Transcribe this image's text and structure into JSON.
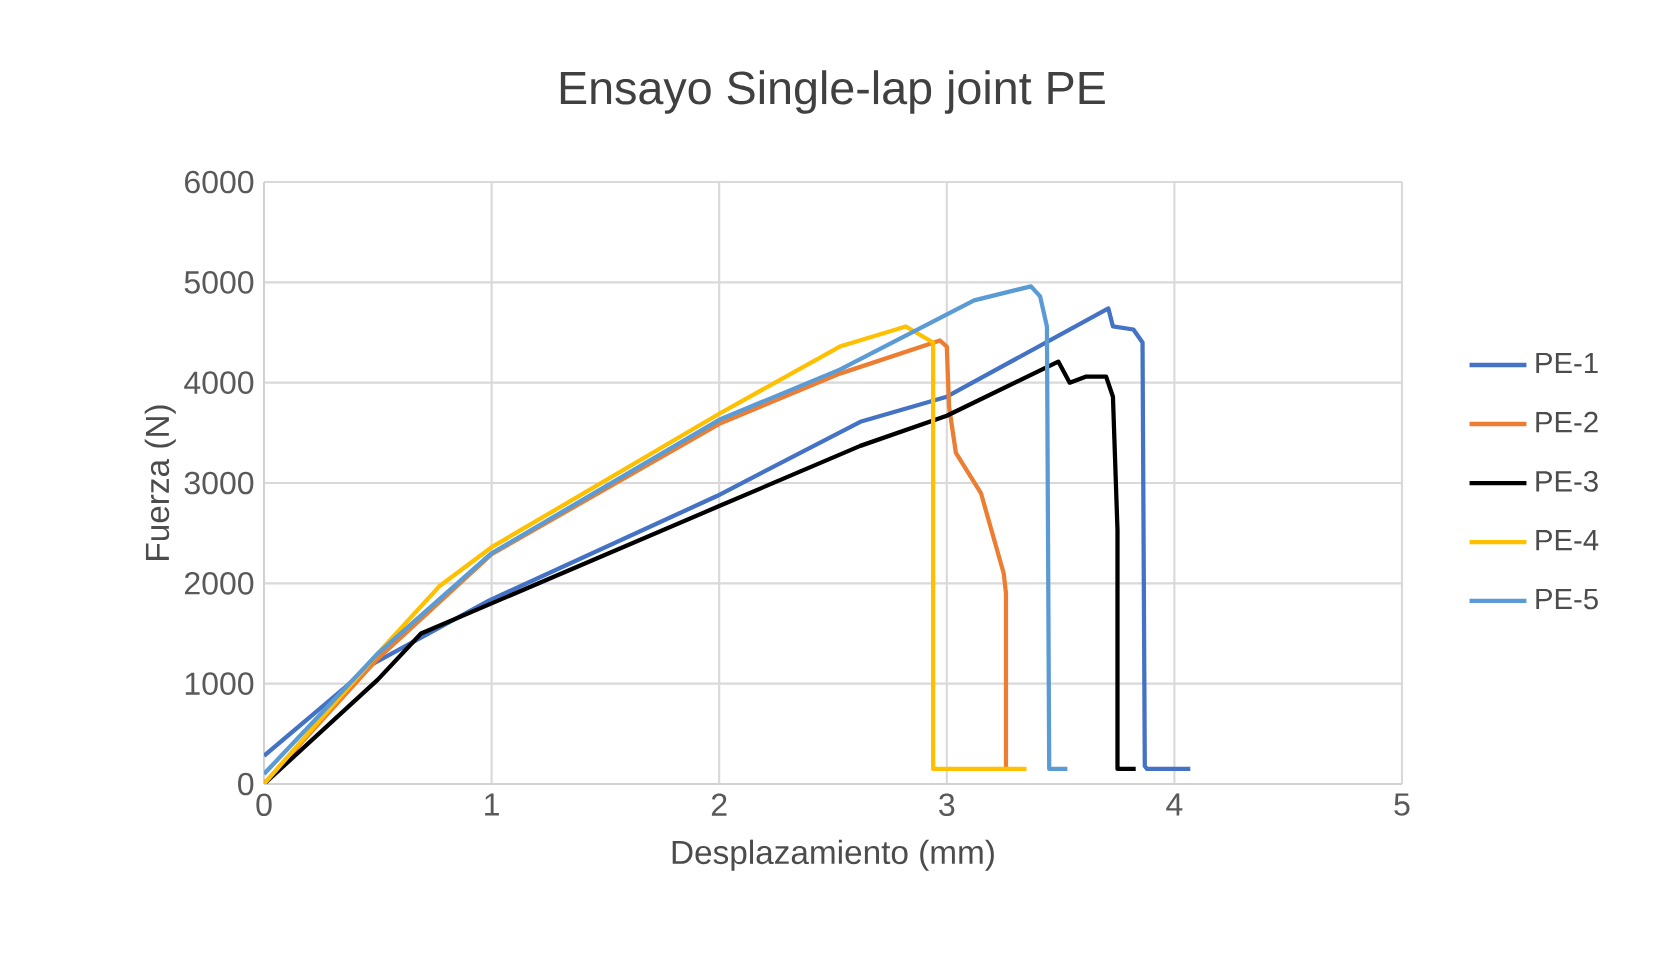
{
  "chart_data": {
    "type": "line",
    "title": "Ensayo Single-lap joint PE",
    "xlabel": "Desplazamiento (mm)",
    "ylabel": "Fuerza (N)",
    "xlim": [
      0,
      5
    ],
    "ylim": [
      0,
      6000
    ],
    "xticks": [
      0,
      1,
      2,
      3,
      4,
      5
    ],
    "yticks": [
      0,
      1000,
      2000,
      3000,
      4000,
      5000,
      6000
    ],
    "grid": true,
    "legend": "right",
    "marker": "none",
    "line_style": "solid",
    "series": [
      {
        "name": "PE-1",
        "color": "#4472c4",
        "x": [
          0,
          0.48,
          0.99,
          1.99,
          2.62,
          3.0,
          3.71,
          3.73,
          3.82,
          3.86,
          3.87,
          3.88,
          4.07
        ],
        "values": [
          280,
          1200,
          1830,
          2870,
          3610,
          3860,
          4740,
          4560,
          4530,
          4400,
          180,
          150,
          150
        ]
      },
      {
        "name": "PE-2",
        "color": "#ed7d31",
        "x": [
          0,
          0.5,
          1.0,
          2.0,
          2.53,
          2.97,
          3.0,
          3.01,
          3.04,
          3.15,
          3.25,
          3.26,
          3.26
        ],
        "values": [
          0,
          1250,
          2290,
          3590,
          4090,
          4420,
          4360,
          3760,
          3300,
          2900,
          2100,
          1900,
          150
        ]
      },
      {
        "name": "PE-3",
        "color": "#000000",
        "x": [
          0,
          0.5,
          0.69,
          1.0,
          2.0,
          2.62,
          3.0,
          3.49,
          3.54,
          3.61,
          3.7,
          3.73,
          3.75,
          3.75,
          3.83
        ],
        "values": [
          0,
          1040,
          1500,
          1800,
          2770,
          3370,
          3670,
          4210,
          4000,
          4060,
          4060,
          3860,
          2530,
          150,
          150
        ]
      },
      {
        "name": "PE-4",
        "color": "#ffc000",
        "x": [
          0,
          0.5,
          0.77,
          1.0,
          2.0,
          2.53,
          2.82,
          2.91,
          2.94,
          2.94,
          3.35
        ],
        "values": [
          0,
          1300,
          1970,
          2360,
          3690,
          4360,
          4560,
          4440,
          4400,
          150,
          150
        ]
      },
      {
        "name": "PE-5",
        "color": "#5b9bd5",
        "x": [
          0,
          0.5,
          1.0,
          2.0,
          2.53,
          3.12,
          3.37,
          3.41,
          3.44,
          3.45,
          3.53
        ],
        "values": [
          100,
          1300,
          2300,
          3630,
          4130,
          4820,
          4960,
          4860,
          4560,
          150,
          150
        ]
      }
    ]
  }
}
